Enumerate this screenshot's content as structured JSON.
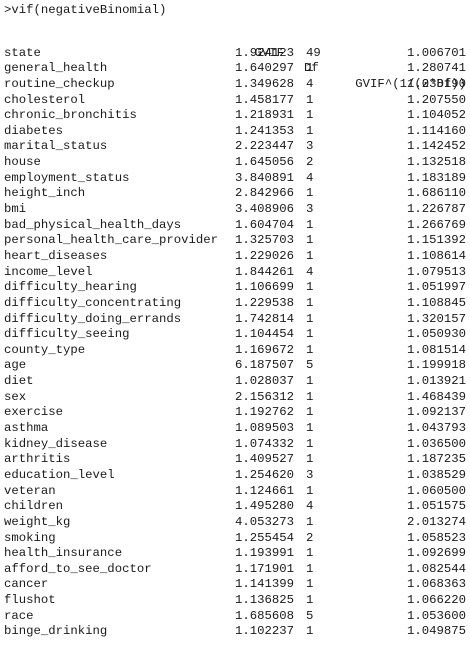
{
  "console": {
    "command": ">vif(negativeBinomial)",
    "headers": {
      "gvif": "GVIF",
      "df": "Df",
      "gvif_adj": "GVIF^(1/(2*Df))"
    },
    "rows": [
      {
        "name": "state",
        "gvif": "1.924123",
        "df": "49",
        "adj": "1.006701"
      },
      {
        "name": "general_health",
        "gvif": "1.640297",
        "df": "1",
        "adj": "1.280741"
      },
      {
        "name": "routine_checkup",
        "gvif": "1.349628",
        "df": "4",
        "adj": "1.038190"
      },
      {
        "name": "cholesterol",
        "gvif": "1.458177",
        "df": "1",
        "adj": "1.207550"
      },
      {
        "name": "chronic_bronchitis",
        "gvif": "1.218931",
        "df": "1",
        "adj": "1.104052"
      },
      {
        "name": "diabetes",
        "gvif": "1.241353",
        "df": "1",
        "adj": "1.114160"
      },
      {
        "name": "marital_status",
        "gvif": "2.223447",
        "df": "3",
        "adj": "1.142452"
      },
      {
        "name": "house",
        "gvif": "1.645056",
        "df": "2",
        "adj": "1.132518"
      },
      {
        "name": "employment_status",
        "gvif": "3.840891",
        "df": "4",
        "adj": "1.183189"
      },
      {
        "name": "height_inch",
        "gvif": "2.842966",
        "df": "1",
        "adj": "1.686110"
      },
      {
        "name": "bmi",
        "gvif": "3.408906",
        "df": "3",
        "adj": "1.226787"
      },
      {
        "name": "bad_physical_health_days",
        "gvif": "1.604704",
        "df": "1",
        "adj": "1.266769"
      },
      {
        "name": "personal_health_care_provider",
        "gvif": "1.325703",
        "df": "1",
        "adj": "1.151392"
      },
      {
        "name": "heart_diseases",
        "gvif": "1.229026",
        "df": "1",
        "adj": "1.108614"
      },
      {
        "name": "income_level",
        "gvif": "1.844261",
        "df": "4",
        "adj": "1.079513"
      },
      {
        "name": "difficulty_hearing",
        "gvif": "1.106699",
        "df": "1",
        "adj": "1.051997"
      },
      {
        "name": "difficulty_concentrating",
        "gvif": "1.229538",
        "df": "1",
        "adj": "1.108845"
      },
      {
        "name": "difficulty_doing_errands",
        "gvif": "1.742814",
        "df": "1",
        "adj": "1.320157"
      },
      {
        "name": "difficulty_seeing",
        "gvif": "1.104454",
        "df": "1",
        "adj": "1.050930"
      },
      {
        "name": "county_type",
        "gvif": "1.169672",
        "df": "1",
        "adj": "1.081514"
      },
      {
        "name": "age",
        "gvif": "6.187507",
        "df": "5",
        "adj": "1.199918"
      },
      {
        "name": "diet",
        "gvif": "1.028037",
        "df": "1",
        "adj": "1.013921"
      },
      {
        "name": "sex",
        "gvif": "2.156312",
        "df": "1",
        "adj": "1.468439"
      },
      {
        "name": "exercise",
        "gvif": "1.192762",
        "df": "1",
        "adj": "1.092137"
      },
      {
        "name": "asthma",
        "gvif": "1.089503",
        "df": "1",
        "adj": "1.043793"
      },
      {
        "name": "kidney_disease",
        "gvif": "1.074332",
        "df": "1",
        "adj": "1.036500"
      },
      {
        "name": "arthritis",
        "gvif": "1.409527",
        "df": "1",
        "adj": "1.187235"
      },
      {
        "name": "education_level",
        "gvif": "1.254620",
        "df": "3",
        "adj": "1.038529"
      },
      {
        "name": "veteran",
        "gvif": "1.124661",
        "df": "1",
        "adj": "1.060500"
      },
      {
        "name": "children",
        "gvif": "1.495280",
        "df": "4",
        "adj": "1.051575"
      },
      {
        "name": "weight_kg",
        "gvif": "4.053273",
        "df": "1",
        "adj": "2.013274"
      },
      {
        "name": "smoking",
        "gvif": "1.255454",
        "df": "2",
        "adj": "1.058523"
      },
      {
        "name": "health_insurance",
        "gvif": "1.193991",
        "df": "1",
        "adj": "1.092699"
      },
      {
        "name": "afford_to_see_doctor",
        "gvif": "1.171901",
        "df": "1",
        "adj": "1.082544"
      },
      {
        "name": "cancer",
        "gvif": "1.141399",
        "df": "1",
        "adj": "1.068363"
      },
      {
        "name": "flushot",
        "gvif": "1.136825",
        "df": "1",
        "adj": "1.066220"
      },
      {
        "name": "race",
        "gvif": "1.685608",
        "df": "5",
        "adj": "1.053600"
      },
      {
        "name": "binge_drinking",
        "gvif": "1.102237",
        "df": "1",
        "adj": "1.049875"
      }
    ]
  }
}
